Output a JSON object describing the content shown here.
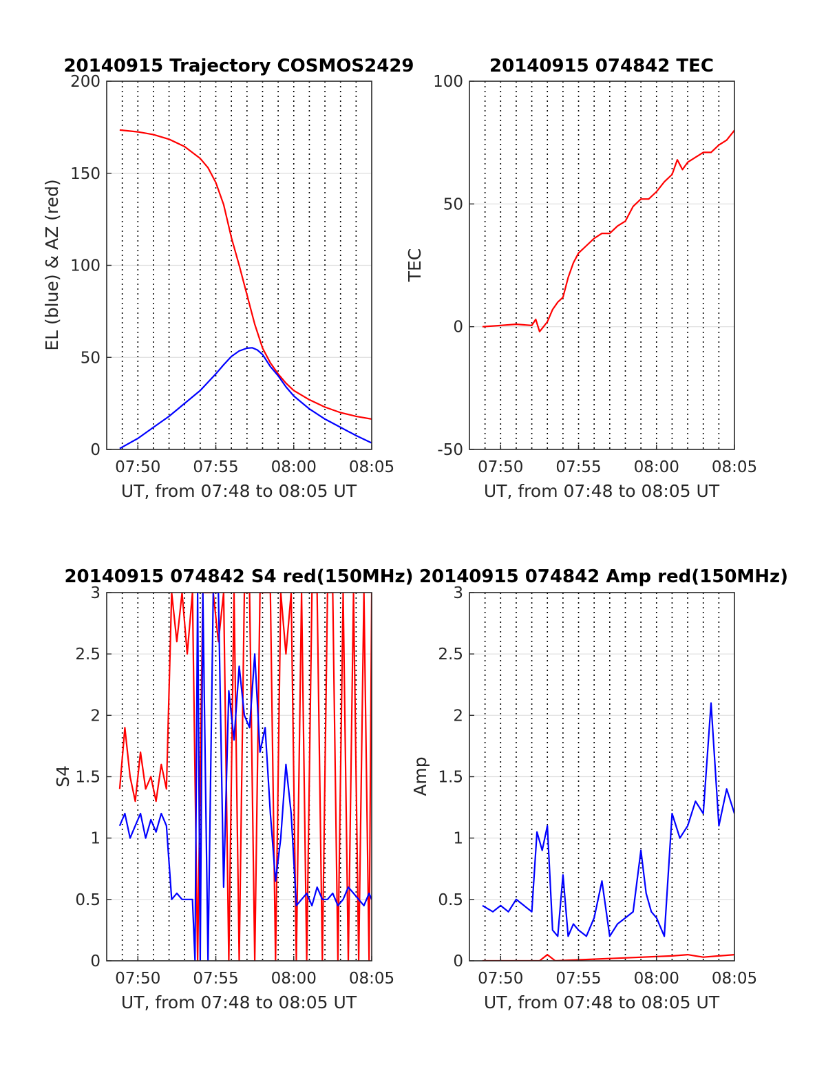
{
  "chart_data": [
    {
      "type": "line",
      "title": "20140915 Trajectory COSMOS2429",
      "xlabel": "UT, from 07:48 to 08:05 UT",
      "ylabel": "EL (blue) & AZ (red)",
      "xlim": [
        "07:48",
        "08:05"
      ],
      "xticks": [
        "07:50",
        "07:55",
        "08:00",
        "08:05"
      ],
      "ylim": [
        0,
        200
      ],
      "yticks": [
        "0",
        "50",
        "100",
        "150",
        "200"
      ],
      "grid": true,
      "series": [
        {
          "color": "#ff0000",
          "x": [
            "07:48:50",
            "07:50:00",
            "07:51:00",
            "07:52:00",
            "07:53:00",
            "07:54:00",
            "07:54:30",
            "07:55:00",
            "07:55:30",
            "07:56:00",
            "07:56:30",
            "07:57:00",
            "07:57:30",
            "07:58:00",
            "07:58:30",
            "07:59:00",
            "07:59:30",
            "08:00:00",
            "08:01:00",
            "08:02:00",
            "08:03:00",
            "08:04:00",
            "08:05:00"
          ],
          "values": [
            173.5,
            172.5,
            171,
            168.5,
            164.5,
            158,
            153,
            145,
            133,
            115,
            100,
            84,
            68,
            55,
            47,
            41,
            36,
            32,
            27,
            23,
            20,
            18,
            16.5
          ]
        },
        {
          "color": "#0000ff",
          "x": [
            "07:48:50",
            "07:50:00",
            "07:51:00",
            "07:52:00",
            "07:53:00",
            "07:54:00",
            "07:55:00",
            "07:55:30",
            "07:56:00",
            "07:56:30",
            "07:57:00",
            "07:57:20",
            "07:57:40",
            "07:58:00",
            "07:58:30",
            "07:59:00",
            "07:59:30",
            "08:00:00",
            "08:01:00",
            "08:02:00",
            "08:03:00",
            "08:04:00",
            "08:05:00"
          ],
          "values": [
            0.5,
            6,
            12,
            18,
            25,
            32,
            41,
            46,
            50.5,
            53.5,
            55,
            55.2,
            54,
            51.5,
            45,
            40,
            34,
            29,
            22,
            16.5,
            12,
            7.5,
            3.5
          ]
        }
      ]
    },
    {
      "type": "line",
      "title": "20140915 074842 TEC",
      "xlabel": "UT, from 07:48 to 08:05 UT",
      "ylabel": "TEC",
      "xlim": [
        "07:48",
        "08:05"
      ],
      "xticks": [
        "07:50",
        "07:55",
        "08:00",
        "08:05"
      ],
      "ylim": [
        -50,
        100
      ],
      "yticks": [
        "-50",
        "0",
        "50",
        "100"
      ],
      "grid": true,
      "series": [
        {
          "color": "#ff0000",
          "x": [
            "07:48:50",
            "07:50:00",
            "07:51:00",
            "07:52:00",
            "07:52:15",
            "07:52:30",
            "07:52:45",
            "07:53:00",
            "07:53:20",
            "07:53:40",
            "07:54:00",
            "07:54:20",
            "07:54:40",
            "07:55:00",
            "07:55:30",
            "07:56:00",
            "07:56:30",
            "07:57:00",
            "07:57:30",
            "07:58:00",
            "07:58:30",
            "07:59:00",
            "07:59:30",
            "08:00:00",
            "08:00:30",
            "08:01:00",
            "08:01:20",
            "08:01:40",
            "08:02:00",
            "08:02:30",
            "08:03:00",
            "08:03:30",
            "08:04:00",
            "08:04:30",
            "08:05:00"
          ],
          "values": [
            0,
            0.5,
            1,
            0.5,
            3,
            -2,
            0,
            2,
            7,
            10,
            12,
            20,
            26,
            30,
            33,
            36,
            38,
            38,
            41,
            43,
            49,
            52,
            52,
            55,
            59,
            62,
            68,
            64,
            67,
            69,
            71,
            71,
            74,
            76,
            80
          ]
        }
      ]
    },
    {
      "type": "line",
      "title": "20140915 074842 S4 red(150MHz)",
      "xlabel": "UT, from 07:48 to 08:05 UT",
      "ylabel": "S4",
      "xlim": [
        "07:48",
        "08:05"
      ],
      "xticks": [
        "07:50",
        "07:55",
        "08:00",
        "08:05"
      ],
      "ylim": [
        0,
        3
      ],
      "yticks": [
        "0",
        "0.5",
        "1",
        "1.5",
        "2",
        "2.5",
        "3"
      ],
      "grid": true,
      "series": [
        {
          "color": "#ff0000",
          "x": [
            "07:48:50",
            "07:49:10",
            "07:49:30",
            "07:49:50",
            "07:50:10",
            "07:50:30",
            "07:50:50",
            "07:51:10",
            "07:51:30",
            "07:51:50",
            "07:52:10",
            "07:52:30",
            "07:52:50",
            "07:53:10",
            "07:53:30",
            "07:53:50",
            "07:54:10",
            "07:54:30",
            "07:54:50",
            "07:55:10",
            "07:55:30",
            "07:55:50",
            "07:56:10",
            "07:56:30",
            "07:56:50",
            "07:57:10",
            "07:57:30",
            "07:57:50",
            "07:58:10",
            "07:58:30",
            "07:58:50",
            "07:59:10",
            "07:59:30",
            "07:59:50",
            "08:00:10",
            "08:00:30",
            "08:00:50",
            "08:01:10",
            "08:01:30",
            "08:01:50",
            "08:02:10",
            "08:02:30",
            "08:02:50",
            "08:03:10",
            "08:03:30",
            "08:03:50",
            "08:04:10",
            "08:04:30",
            "08:04:50",
            "08:05:00"
          ],
          "values": [
            1.4,
            1.9,
            1.5,
            1.3,
            1.7,
            1.4,
            1.5,
            1.3,
            1.6,
            1.4,
            3,
            2.6,
            3,
            2.5,
            3,
            0,
            3,
            3,
            3,
            2.6,
            3,
            0,
            3,
            0,
            3,
            3,
            0,
            3,
            3,
            3,
            0,
            3,
            2.5,
            3,
            0,
            3,
            0,
            3,
            3,
            0,
            3,
            3,
            0,
            3,
            0,
            3,
            0,
            3,
            0,
            3
          ]
        },
        {
          "color": "#0000ff",
          "x": [
            "07:48:50",
            "07:49:10",
            "07:49:30",
            "07:49:50",
            "07:50:10",
            "07:50:30",
            "07:50:50",
            "07:51:10",
            "07:51:30",
            "07:51:50",
            "07:52:10",
            "07:52:30",
            "07:52:50",
            "07:53:10",
            "07:53:30",
            "07:53:40",
            "07:53:50",
            "07:54:00",
            "07:54:10",
            "07:54:30",
            "07:54:50",
            "07:55:10",
            "07:55:30",
            "07:55:50",
            "07:56:10",
            "07:56:30",
            "07:56:50",
            "07:57:10",
            "07:57:30",
            "07:57:50",
            "07:58:10",
            "07:58:30",
            "07:58:50",
            "07:59:10",
            "07:59:30",
            "07:59:50",
            "08:00:10",
            "08:00:30",
            "08:00:50",
            "08:01:10",
            "08:01:30",
            "08:01:50",
            "08:02:10",
            "08:02:30",
            "08:02:50",
            "08:03:10",
            "08:03:30",
            "08:03:50",
            "08:04:10",
            "08:04:30",
            "08:04:50",
            "08:05:00"
          ],
          "values": [
            1.1,
            1.2,
            1.0,
            1.1,
            1.2,
            1.0,
            1.15,
            1.05,
            1.2,
            1.1,
            0.5,
            0.55,
            0.5,
            0.5,
            0.5,
            0,
            3,
            0,
            3,
            0,
            3,
            3,
            0.6,
            2.2,
            1.8,
            2.4,
            2.0,
            1.9,
            2.5,
            1.7,
            1.9,
            1.2,
            0.65,
            1.0,
            1.6,
            1.2,
            0.45,
            0.5,
            0.55,
            0.45,
            0.6,
            0.5,
            0.5,
            0.55,
            0.45,
            0.5,
            0.6,
            0.55,
            0.5,
            0.45,
            0.55,
            0.5
          ]
        }
      ]
    },
    {
      "type": "line",
      "title": "20140915 074842 Amp red(150MHz)",
      "xlabel": "UT, from 07:48 to 08:05 UT",
      "ylabel": "Amp",
      "xlim": [
        "07:48",
        "08:05"
      ],
      "xticks": [
        "07:50",
        "07:55",
        "08:00",
        "08:05"
      ],
      "ylim": [
        0,
        3
      ],
      "yticks": [
        "0",
        "0.5",
        "1",
        "1.5",
        "2",
        "2.5",
        "3"
      ],
      "grid": true,
      "series": [
        {
          "color": "#0000ff",
          "x": [
            "07:48:50",
            "07:49:30",
            "07:50:00",
            "07:50:30",
            "07:51:00",
            "07:51:30",
            "07:52:00",
            "07:52:20",
            "07:52:40",
            "07:53:00",
            "07:53:20",
            "07:53:40",
            "07:54:00",
            "07:54:20",
            "07:54:40",
            "07:55:00",
            "07:55:30",
            "07:56:00",
            "07:56:30",
            "07:57:00",
            "07:57:30",
            "07:58:00",
            "07:58:30",
            "07:59:00",
            "07:59:20",
            "07:59:40",
            "08:00:00",
            "08:00:30",
            "08:01:00",
            "08:01:30",
            "08:02:00",
            "08:02:30",
            "08:03:00",
            "08:03:30",
            "08:04:00",
            "08:04:30",
            "08:05:00"
          ],
          "values": [
            0.45,
            0.4,
            0.45,
            0.4,
            0.5,
            0.45,
            0.4,
            1.05,
            0.9,
            1.1,
            0.25,
            0.2,
            0.7,
            0.2,
            0.3,
            0.25,
            0.2,
            0.35,
            0.65,
            0.2,
            0.3,
            0.35,
            0.4,
            0.9,
            0.55,
            0.4,
            0.35,
            0.2,
            1.2,
            1.0,
            1.1,
            1.3,
            1.2,
            2.1,
            1.1,
            1.4,
            1.2
          ]
        },
        {
          "color": "#ff0000",
          "x": [
            "07:48:50",
            "07:52:30",
            "07:53:00",
            "07:53:30",
            "08:01:00",
            "08:02:00",
            "08:03:00",
            "08:04:00",
            "08:05:00"
          ],
          "values": [
            0,
            0,
            0.05,
            0,
            0.04,
            0.05,
            0.03,
            0.04,
            0.05
          ]
        }
      ]
    }
  ]
}
